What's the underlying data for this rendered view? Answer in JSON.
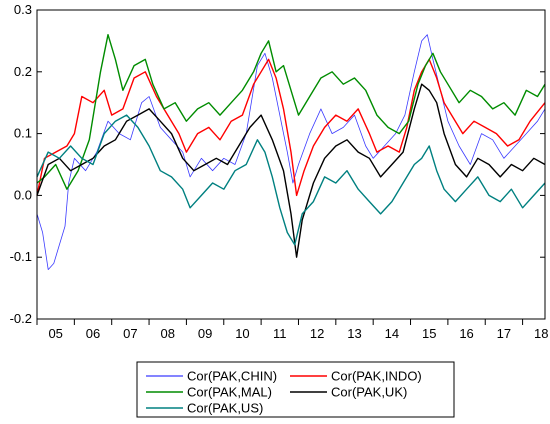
{
  "chart_data": {
    "type": "line",
    "title": "",
    "xlabel": "",
    "ylabel": "",
    "xlim": [
      2005,
      2018.6
    ],
    "ylim": [
      -0.2,
      0.3
    ],
    "grid": false,
    "legend_position": "bottom",
    "x_tick_labels": [
      "05",
      "06",
      "07",
      "08",
      "09",
      "10",
      "11",
      "12",
      "13",
      "14",
      "15",
      "16",
      "17",
      "18"
    ],
    "x_tick_values": [
      2005,
      2006,
      2007,
      2008,
      2009,
      2010,
      2011,
      2012,
      2013,
      2014,
      2015,
      2016,
      2017,
      2018
    ],
    "y_tick_labels": [
      "-0.2",
      "-0.1",
      "0.0",
      "0.1",
      "0.2",
      "0.3"
    ],
    "y_tick_values": [
      -0.2,
      -0.1,
      0.0,
      0.1,
      0.2,
      0.3
    ],
    "series": [
      {
        "name": "Cor(PAK,CHIN)",
        "color": "#3b3bff",
        "width": 0.8,
        "points": [
          [
            2005,
            -0.03
          ],
          [
            2005.15,
            -0.06
          ],
          [
            2005.3,
            -0.12
          ],
          [
            2005.45,
            -0.11
          ],
          [
            2005.6,
            -0.08
          ],
          [
            2005.75,
            -0.05
          ],
          [
            2005.85,
            0.02
          ],
          [
            2006,
            0.06
          ],
          [
            2006.3,
            0.04
          ],
          [
            2006.6,
            0.07
          ],
          [
            2006.9,
            0.12
          ],
          [
            2007.2,
            0.1
          ],
          [
            2007.5,
            0.09
          ],
          [
            2007.8,
            0.15
          ],
          [
            2008,
            0.16
          ],
          [
            2008.3,
            0.11
          ],
          [
            2008.6,
            0.09
          ],
          [
            2008.9,
            0.07
          ],
          [
            2009.1,
            0.03
          ],
          [
            2009.4,
            0.06
          ],
          [
            2009.7,
            0.04
          ],
          [
            2010,
            0.06
          ],
          [
            2010.3,
            0.05
          ],
          [
            2010.6,
            0.1
          ],
          [
            2010.9,
            0.21
          ],
          [
            2011.1,
            0.23
          ],
          [
            2011.3,
            0.19
          ],
          [
            2011.5,
            0.13
          ],
          [
            2011.7,
            0.07
          ],
          [
            2011.85,
            0.02
          ],
          [
            2012,
            0.05
          ],
          [
            2012.3,
            0.1
          ],
          [
            2012.6,
            0.14
          ],
          [
            2012.9,
            0.1
          ],
          [
            2013.2,
            0.11
          ],
          [
            2013.5,
            0.13
          ],
          [
            2013.8,
            0.08
          ],
          [
            2014,
            0.06
          ],
          [
            2014.3,
            0.08
          ],
          [
            2014.6,
            0.1
          ],
          [
            2014.85,
            0.13
          ],
          [
            2015.1,
            0.2
          ],
          [
            2015.3,
            0.25
          ],
          [
            2015.45,
            0.26
          ],
          [
            2015.6,
            0.22
          ],
          [
            2015.8,
            0.17
          ],
          [
            2016,
            0.12
          ],
          [
            2016.3,
            0.08
          ],
          [
            2016.6,
            0.05
          ],
          [
            2016.9,
            0.1
          ],
          [
            2017.2,
            0.09
          ],
          [
            2017.5,
            0.06
          ],
          [
            2017.8,
            0.08
          ],
          [
            2018.1,
            0.1
          ],
          [
            2018.4,
            0.12
          ],
          [
            2018.6,
            0.14
          ]
        ]
      },
      {
        "name": "Cor(PAK,INDO)",
        "color": "#ff0000",
        "width": 1.4,
        "points": [
          [
            2005,
            0.0
          ],
          [
            2005.2,
            0.06
          ],
          [
            2005.5,
            0.07
          ],
          [
            2005.8,
            0.08
          ],
          [
            2006,
            0.1
          ],
          [
            2006.2,
            0.16
          ],
          [
            2006.5,
            0.15
          ],
          [
            2006.8,
            0.17
          ],
          [
            2007,
            0.13
          ],
          [
            2007.3,
            0.14
          ],
          [
            2007.6,
            0.19
          ],
          [
            2007.9,
            0.2
          ],
          [
            2008.2,
            0.16
          ],
          [
            2008.5,
            0.13
          ],
          [
            2008.8,
            0.1
          ],
          [
            2009,
            0.07
          ],
          [
            2009.3,
            0.1
          ],
          [
            2009.6,
            0.11
          ],
          [
            2009.9,
            0.09
          ],
          [
            2010.2,
            0.12
          ],
          [
            2010.5,
            0.13
          ],
          [
            2010.8,
            0.18
          ],
          [
            2011,
            0.2
          ],
          [
            2011.2,
            0.22
          ],
          [
            2011.4,
            0.19
          ],
          [
            2011.6,
            0.14
          ],
          [
            2011.8,
            0.07
          ],
          [
            2011.95,
            0.0
          ],
          [
            2012.15,
            0.04
          ],
          [
            2012.4,
            0.08
          ],
          [
            2012.7,
            0.11
          ],
          [
            2013,
            0.13
          ],
          [
            2013.3,
            0.12
          ],
          [
            2013.6,
            0.14
          ],
          [
            2013.9,
            0.1
          ],
          [
            2014.1,
            0.07
          ],
          [
            2014.4,
            0.08
          ],
          [
            2014.7,
            0.07
          ],
          [
            2014.9,
            0.11
          ],
          [
            2015.1,
            0.17
          ],
          [
            2015.3,
            0.2
          ],
          [
            2015.5,
            0.22
          ],
          [
            2015.7,
            0.19
          ],
          [
            2015.9,
            0.15
          ],
          [
            2016.1,
            0.13
          ],
          [
            2016.4,
            0.1
          ],
          [
            2016.7,
            0.12
          ],
          [
            2017,
            0.11
          ],
          [
            2017.3,
            0.1
          ],
          [
            2017.6,
            0.08
          ],
          [
            2017.9,
            0.09
          ],
          [
            2018.2,
            0.12
          ],
          [
            2018.6,
            0.15
          ]
        ]
      },
      {
        "name": "Cor(PAK,MAL)",
        "color": "#008c00",
        "width": 1.4,
        "points": [
          [
            2005,
            0.02
          ],
          [
            2005.2,
            0.03
          ],
          [
            2005.5,
            0.05
          ],
          [
            2005.8,
            0.01
          ],
          [
            2006.1,
            0.04
          ],
          [
            2006.4,
            0.09
          ],
          [
            2006.7,
            0.2
          ],
          [
            2006.9,
            0.26
          ],
          [
            2007.1,
            0.22
          ],
          [
            2007.3,
            0.17
          ],
          [
            2007.6,
            0.21
          ],
          [
            2007.9,
            0.22
          ],
          [
            2008.1,
            0.18
          ],
          [
            2008.4,
            0.14
          ],
          [
            2008.7,
            0.15
          ],
          [
            2009,
            0.12
          ],
          [
            2009.3,
            0.14
          ],
          [
            2009.6,
            0.15
          ],
          [
            2009.9,
            0.13
          ],
          [
            2010.2,
            0.15
          ],
          [
            2010.5,
            0.17
          ],
          [
            2010.8,
            0.2
          ],
          [
            2011,
            0.23
          ],
          [
            2011.2,
            0.25
          ],
          [
            2011.4,
            0.2
          ],
          [
            2011.6,
            0.21
          ],
          [
            2011.8,
            0.17
          ],
          [
            2012,
            0.13
          ],
          [
            2012.3,
            0.16
          ],
          [
            2012.6,
            0.19
          ],
          [
            2012.9,
            0.2
          ],
          [
            2013.2,
            0.18
          ],
          [
            2013.5,
            0.19
          ],
          [
            2013.8,
            0.17
          ],
          [
            2014.1,
            0.13
          ],
          [
            2014.4,
            0.11
          ],
          [
            2014.7,
            0.1
          ],
          [
            2014.95,
            0.12
          ],
          [
            2015.2,
            0.18
          ],
          [
            2015.4,
            0.21
          ],
          [
            2015.6,
            0.23
          ],
          [
            2015.8,
            0.2
          ],
          [
            2016,
            0.18
          ],
          [
            2016.3,
            0.15
          ],
          [
            2016.6,
            0.17
          ],
          [
            2016.9,
            0.16
          ],
          [
            2017.2,
            0.14
          ],
          [
            2017.5,
            0.15
          ],
          [
            2017.8,
            0.13
          ],
          [
            2018.1,
            0.17
          ],
          [
            2018.4,
            0.16
          ],
          [
            2018.6,
            0.18
          ]
        ]
      },
      {
        "name": "Cor(PAK,UK)",
        "color": "#000000",
        "width": 1.4,
        "points": [
          [
            2005,
            0.0
          ],
          [
            2005.3,
            0.05
          ],
          [
            2005.6,
            0.06
          ],
          [
            2005.9,
            0.04
          ],
          [
            2006.2,
            0.05
          ],
          [
            2006.5,
            0.06
          ],
          [
            2006.8,
            0.08
          ],
          [
            2007.1,
            0.09
          ],
          [
            2007.4,
            0.12
          ],
          [
            2007.7,
            0.13
          ],
          [
            2008,
            0.14
          ],
          [
            2008.3,
            0.12
          ],
          [
            2008.6,
            0.1
          ],
          [
            2008.9,
            0.06
          ],
          [
            2009.2,
            0.04
          ],
          [
            2009.5,
            0.05
          ],
          [
            2009.8,
            0.06
          ],
          [
            2010.1,
            0.05
          ],
          [
            2010.4,
            0.08
          ],
          [
            2010.7,
            0.11
          ],
          [
            2011,
            0.13
          ],
          [
            2011.3,
            0.09
          ],
          [
            2011.6,
            0.04
          ],
          [
            2011.8,
            -0.03
          ],
          [
            2011.95,
            -0.1
          ],
          [
            2012.1,
            -0.04
          ],
          [
            2012.4,
            0.02
          ],
          [
            2012.7,
            0.06
          ],
          [
            2013,
            0.08
          ],
          [
            2013.3,
            0.09
          ],
          [
            2013.6,
            0.07
          ],
          [
            2013.9,
            0.06
          ],
          [
            2014.2,
            0.03
          ],
          [
            2014.5,
            0.05
          ],
          [
            2014.8,
            0.07
          ],
          [
            2015.1,
            0.14
          ],
          [
            2015.3,
            0.18
          ],
          [
            2015.5,
            0.17
          ],
          [
            2015.7,
            0.15
          ],
          [
            2015.9,
            0.1
          ],
          [
            2016.2,
            0.05
          ],
          [
            2016.5,
            0.03
          ],
          [
            2016.8,
            0.06
          ],
          [
            2017.1,
            0.05
          ],
          [
            2017.4,
            0.03
          ],
          [
            2017.7,
            0.05
          ],
          [
            2018,
            0.04
          ],
          [
            2018.3,
            0.06
          ],
          [
            2018.6,
            0.05
          ]
        ]
      },
      {
        "name": "Cor(PAK,US)",
        "color": "#008080",
        "width": 1.4,
        "points": [
          [
            2005,
            0.03
          ],
          [
            2005.3,
            0.07
          ],
          [
            2005.6,
            0.06
          ],
          [
            2005.9,
            0.08
          ],
          [
            2006.2,
            0.06
          ],
          [
            2006.5,
            0.05
          ],
          [
            2006.8,
            0.1
          ],
          [
            2007.1,
            0.12
          ],
          [
            2007.4,
            0.13
          ],
          [
            2007.7,
            0.11
          ],
          [
            2008,
            0.08
          ],
          [
            2008.3,
            0.04
          ],
          [
            2008.6,
            0.03
          ],
          [
            2008.9,
            0.01
          ],
          [
            2009.1,
            -0.02
          ],
          [
            2009.4,
            0.0
          ],
          [
            2009.7,
            0.02
          ],
          [
            2010,
            0.01
          ],
          [
            2010.3,
            0.04
          ],
          [
            2010.6,
            0.05
          ],
          [
            2010.9,
            0.09
          ],
          [
            2011.1,
            0.07
          ],
          [
            2011.3,
            0.03
          ],
          [
            2011.5,
            -0.02
          ],
          [
            2011.7,
            -0.06
          ],
          [
            2011.9,
            -0.08
          ],
          [
            2012.1,
            -0.03
          ],
          [
            2012.4,
            -0.01
          ],
          [
            2012.7,
            0.03
          ],
          [
            2013,
            0.02
          ],
          [
            2013.3,
            0.04
          ],
          [
            2013.6,
            0.01
          ],
          [
            2013.9,
            -0.01
          ],
          [
            2014.2,
            -0.03
          ],
          [
            2014.5,
            -0.01
          ],
          [
            2014.8,
            0.02
          ],
          [
            2015.1,
            0.05
          ],
          [
            2015.3,
            0.06
          ],
          [
            2015.5,
            0.08
          ],
          [
            2015.7,
            0.04
          ],
          [
            2015.9,
            0.01
          ],
          [
            2016.2,
            -0.01
          ],
          [
            2016.5,
            0.01
          ],
          [
            2016.8,
            0.03
          ],
          [
            2017.1,
            0.0
          ],
          [
            2017.4,
            -0.01
          ],
          [
            2017.7,
            0.01
          ],
          [
            2018,
            -0.02
          ],
          [
            2018.3,
            0.0
          ],
          [
            2018.6,
            0.02
          ]
        ]
      }
    ]
  }
}
